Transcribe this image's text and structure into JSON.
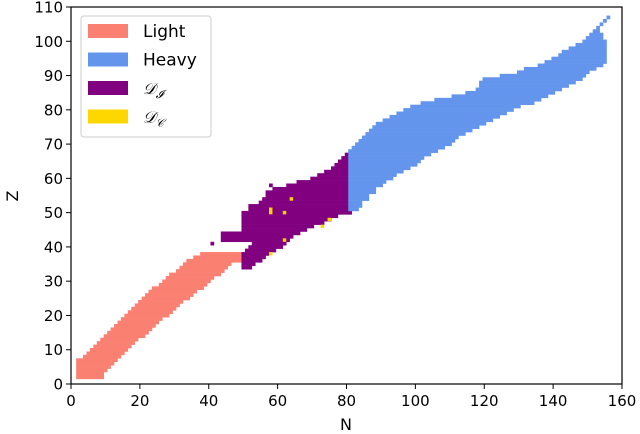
{
  "chart_data": {
    "type": "heatmap",
    "title": "",
    "xlabel": "N",
    "ylabel": "Z",
    "xlim": [
      0,
      160
    ],
    "ylim": [
      0,
      110
    ],
    "xticks": [
      0,
      20,
      40,
      60,
      80,
      100,
      120,
      140,
      160
    ],
    "yticks": [
      0,
      10,
      20,
      30,
      40,
      50,
      60,
      70,
      80,
      90,
      100,
      110
    ],
    "grid": false,
    "legend_position": "upper left",
    "legend": [
      {
        "key": "light",
        "label": "Light",
        "color": "#fa8072"
      },
      {
        "key": "heavy",
        "label": "Heavy",
        "color": "#6495ed"
      },
      {
        "key": "di",
        "label": "𝒟",
        "sub": "𝓘",
        "color": "#800080"
      },
      {
        "key": "dc",
        "label": "𝒟",
        "sub": "𝒞",
        "color": "#ffd700"
      }
    ],
    "series": [
      {
        "name": "Light",
        "color": "#fa8072",
        "rows": [
          [
            2,
            2,
            9
          ],
          [
            3,
            2,
            9
          ],
          [
            4,
            2,
            10
          ],
          [
            5,
            2,
            11
          ],
          [
            6,
            2,
            12
          ],
          [
            7,
            2,
            13
          ],
          [
            8,
            4,
            14
          ],
          [
            9,
            5,
            15
          ],
          [
            10,
            6,
            16
          ],
          [
            11,
            7,
            17
          ],
          [
            12,
            8,
            18
          ],
          [
            13,
            9,
            19
          ],
          [
            14,
            10,
            21
          ],
          [
            15,
            11,
            22
          ],
          [
            16,
            12,
            23
          ],
          [
            17,
            13,
            24
          ],
          [
            18,
            14,
            25
          ],
          [
            19,
            15,
            26
          ],
          [
            20,
            16,
            28
          ],
          [
            21,
            17,
            29
          ],
          [
            22,
            18,
            30
          ],
          [
            23,
            19,
            31
          ],
          [
            24,
            20,
            32
          ],
          [
            25,
            21,
            34
          ],
          [
            26,
            22,
            35
          ],
          [
            27,
            23,
            36
          ],
          [
            28,
            24,
            38
          ],
          [
            29,
            26,
            39
          ],
          [
            30,
            27,
            40
          ],
          [
            31,
            28,
            41
          ],
          [
            32,
            29,
            43
          ],
          [
            33,
            31,
            44
          ],
          [
            34,
            32,
            45
          ],
          [
            35,
            33,
            46
          ],
          [
            36,
            34,
            49
          ],
          [
            37,
            36,
            49
          ],
          [
            38,
            38,
            49
          ]
        ]
      },
      {
        "name": "D_I",
        "color": "#800080",
        "rows": [
          [
            34,
            50,
            52
          ],
          [
            35,
            50,
            53
          ],
          [
            36,
            50,
            55
          ],
          [
            37,
            50,
            56
          ],
          [
            38,
            50,
            57
          ],
          [
            39,
            51,
            59
          ],
          [
            40,
            52,
            61
          ],
          [
            41,
            41,
            41
          ],
          [
            41,
            53,
            62
          ],
          [
            42,
            44,
            63
          ],
          [
            43,
            44,
            64
          ],
          [
            44,
            44,
            66
          ],
          [
            45,
            50,
            68
          ],
          [
            46,
            50,
            70
          ],
          [
            47,
            50,
            73
          ],
          [
            48,
            50,
            75
          ],
          [
            49,
            50,
            77
          ],
          [
            50,
            50,
            81
          ],
          [
            51,
            52,
            81
          ],
          [
            52,
            52,
            81
          ],
          [
            53,
            55,
            80
          ],
          [
            54,
            56,
            80
          ],
          [
            55,
            57,
            80
          ],
          [
            56,
            57,
            80
          ],
          [
            57,
            59,
            80
          ],
          [
            58,
            58,
            58
          ],
          [
            58,
            63,
            80
          ],
          [
            59,
            66,
            80
          ],
          [
            60,
            70,
            80
          ],
          [
            61,
            72,
            80
          ],
          [
            62,
            74,
            80
          ],
          [
            63,
            76,
            80
          ],
          [
            64,
            77,
            80
          ],
          [
            65,
            78,
            80
          ],
          [
            66,
            79,
            80
          ],
          [
            67,
            80,
            80
          ],
          [
            68,
            81,
            80
          ]
        ]
      },
      {
        "name": "Heavy",
        "color": "#6495ed",
        "rows": [
          [
            51,
            81,
            83
          ],
          [
            52,
            81,
            84
          ],
          [
            53,
            81,
            84
          ],
          [
            54,
            81,
            86
          ],
          [
            55,
            81,
            86
          ],
          [
            56,
            81,
            88
          ],
          [
            57,
            81,
            88
          ],
          [
            58,
            81,
            90
          ],
          [
            59,
            81,
            91
          ],
          [
            60,
            81,
            93
          ],
          [
            61,
            81,
            94
          ],
          [
            62,
            81,
            96
          ],
          [
            63,
            81,
            98
          ],
          [
            64,
            81,
            100
          ],
          [
            65,
            81,
            101
          ],
          [
            66,
            81,
            102
          ],
          [
            67,
            81,
            104
          ],
          [
            68,
            81,
            106
          ],
          [
            69,
            82,
            108
          ],
          [
            70,
            83,
            110
          ],
          [
            71,
            84,
            111
          ],
          [
            72,
            85,
            112
          ],
          [
            73,
            86,
            114
          ],
          [
            74,
            87,
            116
          ],
          [
            75,
            88,
            118
          ],
          [
            76,
            89,
            120
          ],
          [
            77,
            91,
            122
          ],
          [
            78,
            93,
            124
          ],
          [
            79,
            95,
            126
          ],
          [
            80,
            97,
            128
          ],
          [
            81,
            99,
            130
          ],
          [
            82,
            102,
            134
          ],
          [
            83,
            106,
            136
          ],
          [
            84,
            111,
            138
          ],
          [
            85,
            115,
            140
          ],
          [
            86,
            118,
            142
          ],
          [
            87,
            119,
            144
          ],
          [
            88,
            119,
            146
          ],
          [
            89,
            120,
            148
          ],
          [
            90,
            125,
            149
          ],
          [
            91,
            130,
            150
          ],
          [
            92,
            132,
            152
          ],
          [
            93,
            136,
            154
          ],
          [
            94,
            138,
            155
          ],
          [
            95,
            140,
            155
          ],
          [
            96,
            142,
            155
          ],
          [
            97,
            143,
            155
          ],
          [
            98,
            145,
            155
          ],
          [
            99,
            147,
            155
          ],
          [
            100,
            149,
            155
          ],
          [
            101,
            150,
            154
          ],
          [
            102,
            151,
            154
          ],
          [
            103,
            152,
            153
          ],
          [
            104,
            153,
            153
          ],
          [
            105,
            154,
            154
          ],
          [
            106,
            155,
            155
          ],
          [
            107,
            156,
            156
          ]
        ]
      },
      {
        "name": "D_C",
        "color": "#ffd700",
        "points": [
          [
            58,
            50
          ],
          [
            58,
            51
          ],
          [
            62,
            50
          ],
          [
            64,
            54
          ],
          [
            75,
            48
          ],
          [
            73,
            46
          ],
          [
            62,
            42
          ],
          [
            58,
            38
          ]
        ]
      }
    ]
  }
}
